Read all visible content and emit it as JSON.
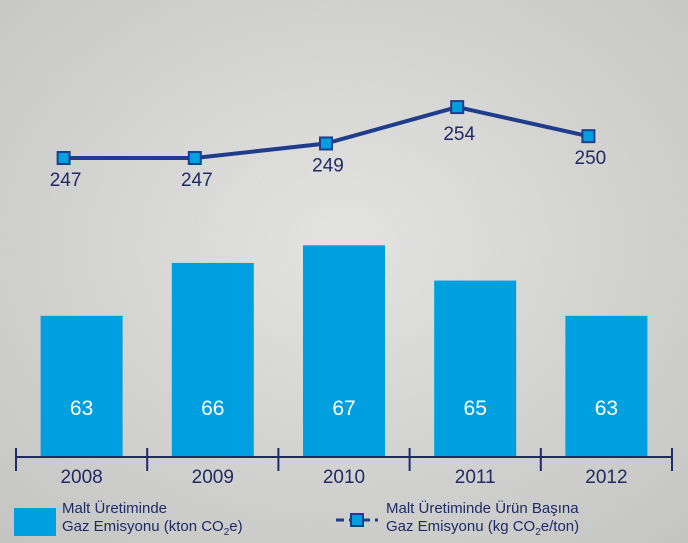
{
  "chart_data": {
    "type": "bar",
    "categories": [
      "2008",
      "2009",
      "2010",
      "2011",
      "2012"
    ],
    "series": [
      {
        "name": "Malt Üretiminde Gaz Emisyonu (kton CO₂e)",
        "type": "bar",
        "values": [
          63,
          66,
          67,
          65,
          63
        ],
        "color": "#00a0e0"
      },
      {
        "name": "Malt Üretiminde Ürün Başına Gaz Emisyonu (kg CO₂e/ton)",
        "type": "line",
        "values": [
          247,
          247,
          249,
          254,
          250
        ],
        "color": "#1f3d8a"
      }
    ],
    "bar_ylim": [
      55,
      69
    ],
    "line_ylim": [
      236,
      258
    ]
  },
  "legend": {
    "bar_line1": "Malt Üretiminde",
    "bar_line2a": "Gaz Emisyonu (kton CO",
    "bar_sub": "2",
    "bar_line2b": "e)",
    "line_line1": "Malt Üretiminde Ürün Başına",
    "line_line2a": "Gaz Emisyonu (kg CO",
    "line_sub": "2",
    "line_line2b": "e/ton)"
  }
}
